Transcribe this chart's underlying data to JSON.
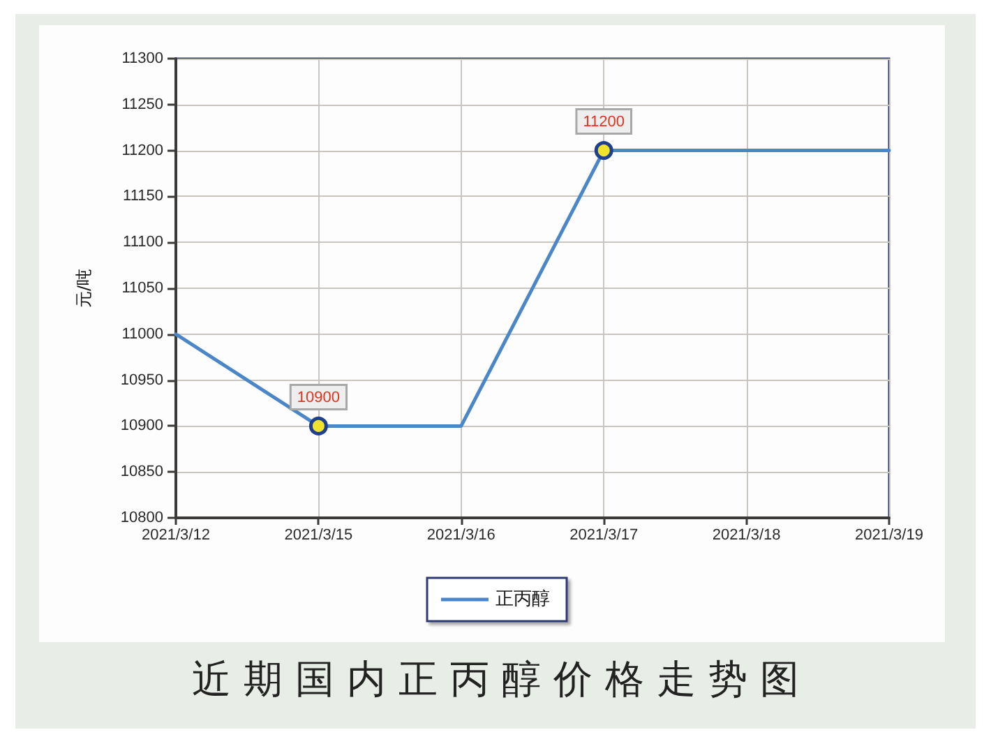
{
  "chart_data": {
    "type": "line",
    "title": "近期国内正丙醇价格走势图",
    "ylabel": "元/吨",
    "categories": [
      "2021/3/12",
      "2021/3/15",
      "2021/3/16",
      "2021/3/17",
      "2021/3/18",
      "2021/3/19"
    ],
    "series": [
      {
        "name": "正丙醇",
        "color": "#4a86c8",
        "values": [
          11000,
          10900,
          10900,
          11200,
          11200,
          11200
        ],
        "marker": "none",
        "line_style": "solid"
      },
      {
        "type": "scatter",
        "color": "#f1e22c",
        "x": [
          "2021/3/15",
          "2021/3/17"
        ],
        "values": [
          10900,
          11200
        ],
        "value_labels": [
          "10900",
          "11200"
        ],
        "marker": "circle"
      }
    ],
    "ylim": [
      10800,
      11300
    ],
    "yticks": [
      10800,
      10850,
      10900,
      10950,
      11000,
      11050,
      11100,
      11150,
      11200,
      11250,
      11300
    ],
    "grid": true,
    "legend": "bottom"
  }
}
